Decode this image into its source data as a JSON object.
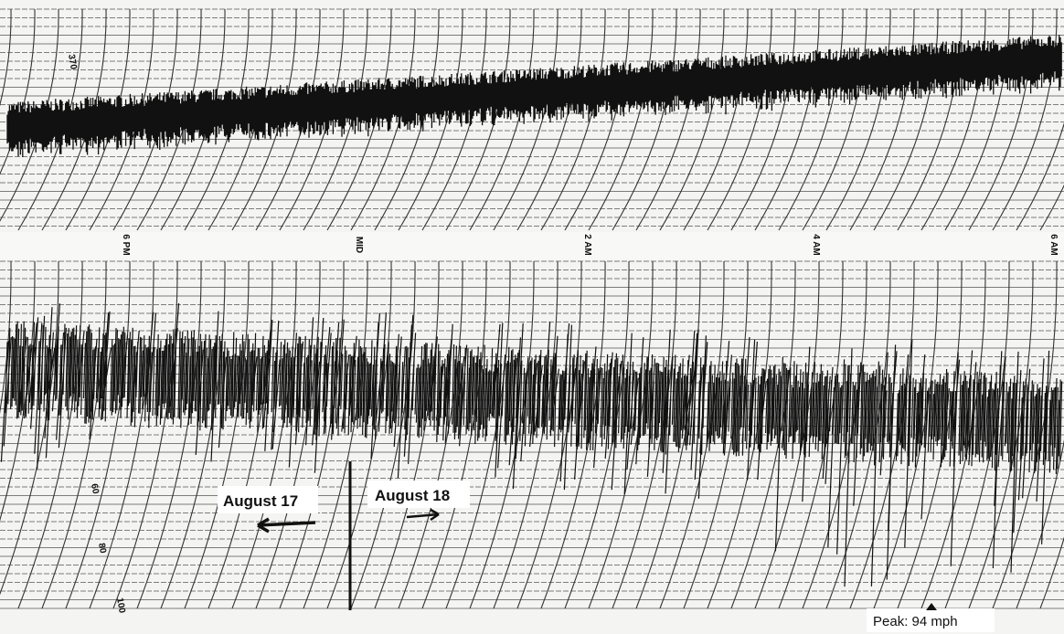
{
  "time_labels": [
    "6 PM",
    "MID",
    "2 AM",
    "4 AM",
    "6 AM"
  ],
  "scale_labels": [
    "370",
    "60",
    "80",
    "100"
  ],
  "annotations": {
    "left_date": "August 17",
    "right_date": "August 18",
    "peak": "Peak: 94 mph"
  }
}
